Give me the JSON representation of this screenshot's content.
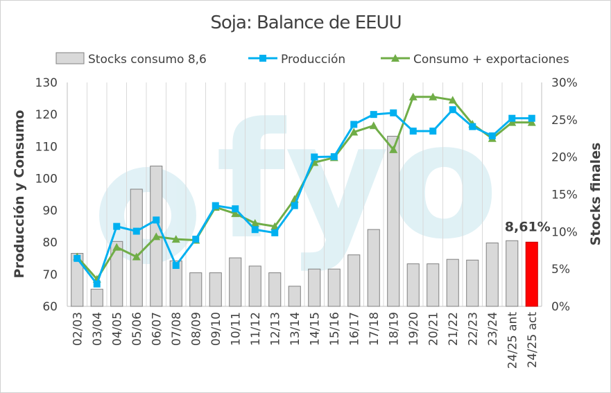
{
  "chart_data": {
    "type": "bar+line",
    "title": "Soja: Balance de EEUU",
    "categories": [
      "02/03",
      "03/04",
      "04/05",
      "05/06",
      "06/07",
      "07/08",
      "08/09",
      "09/10",
      "10/11",
      "11/12",
      "12/13",
      "13/14",
      "14/15",
      "15/16",
      "16/17",
      "17/18",
      "18/19",
      "19/20",
      "20/21",
      "21/22",
      "22/23",
      "23/24",
      "24/25 ant",
      "24/25 act"
    ],
    "series": [
      {
        "name": "Stocks consumo 8,6",
        "type": "bar",
        "axis": "right",
        "color": "#d9d9d9",
        "highlight_color": "#ff0000",
        "values": [
          7.1,
          2.3,
          8.7,
          15.7,
          18.8,
          6.1,
          4.5,
          4.5,
          6.5,
          5.4,
          4.5,
          2.7,
          5.0,
          5.0,
          6.9,
          10.3,
          22.8,
          5.7,
          5.7,
          6.3,
          6.2,
          8.5,
          8.8,
          8.61
        ]
      },
      {
        "name": "Producción",
        "type": "line",
        "axis": "left",
        "color": "#00b0f0",
        "marker": "square",
        "values": [
          75,
          67,
          85,
          83.5,
          87,
          72.8,
          81,
          91.5,
          90.5,
          84,
          83,
          91.5,
          106.7,
          106.8,
          116.9,
          120,
          120.5,
          114.8,
          114.8,
          121.5,
          116.2,
          113.3,
          118.8,
          118.8
        ]
      },
      {
        "name": "Consumo + exportaciones",
        "type": "line",
        "axis": "left",
        "color": "#70ad47",
        "marker": "triangle",
        "values": [
          75.5,
          68.5,
          78.5,
          75.5,
          81.8,
          81,
          80.7,
          91,
          89,
          86,
          85,
          93.5,
          105,
          106.5,
          114.5,
          116.5,
          109,
          125.5,
          125.5,
          124.5,
          117,
          112.5,
          117.5,
          117.5
        ]
      }
    ],
    "y_left": {
      "label": "Producción y Consumo",
      "min": 60,
      "max": 130,
      "step": 10
    },
    "y_right": {
      "label": "Stocks finales",
      "min": 0,
      "max": 30,
      "step": 5,
      "unit": "%"
    },
    "annotation": {
      "text": "8,61%",
      "category": "24/25 act"
    },
    "legend_position": "top",
    "grid": "vertical",
    "watermark": "fyo"
  }
}
